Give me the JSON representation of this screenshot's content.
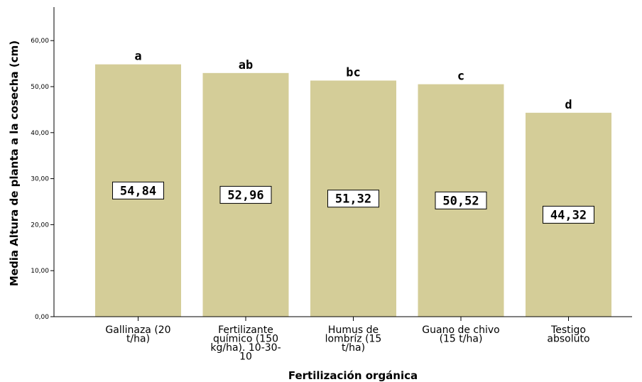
{
  "chart_data": {
    "type": "bar",
    "title": "",
    "xlabel": "Fertilización orgánica",
    "ylabel": "Media Altura de planta a la cosecha (cm)",
    "ylim": [
      0,
      65
    ],
    "yticks": [
      "0,00",
      "10,00",
      "20,00",
      "30,00",
      "40,00",
      "50,00",
      "60,00"
    ],
    "ytick_values": [
      0,
      10,
      20,
      30,
      40,
      50,
      60
    ],
    "categories": [
      [
        "Gallinaza (20",
        "t/ha)"
      ],
      [
        "Fertilizante",
        "químico (150",
        "kg/ha). 10-30-",
        "10"
      ],
      [
        "Humus de",
        "lombríz (15",
        "t/ha)"
      ],
      [
        "Guano de chivo",
        "(15 t/ha)"
      ],
      [
        "Testigo",
        "absoluto"
      ]
    ],
    "values": [
      54.84,
      52.96,
      51.32,
      50.52,
      44.32
    ],
    "value_labels": [
      "54,84",
      "52,96",
      "51,32",
      "50,52",
      "44,32"
    ],
    "significance_letters": [
      "a",
      "ab",
      "bc",
      "c",
      "d"
    ],
    "bar_color": "#d4cd98",
    "grid": false,
    "legend": "none"
  }
}
